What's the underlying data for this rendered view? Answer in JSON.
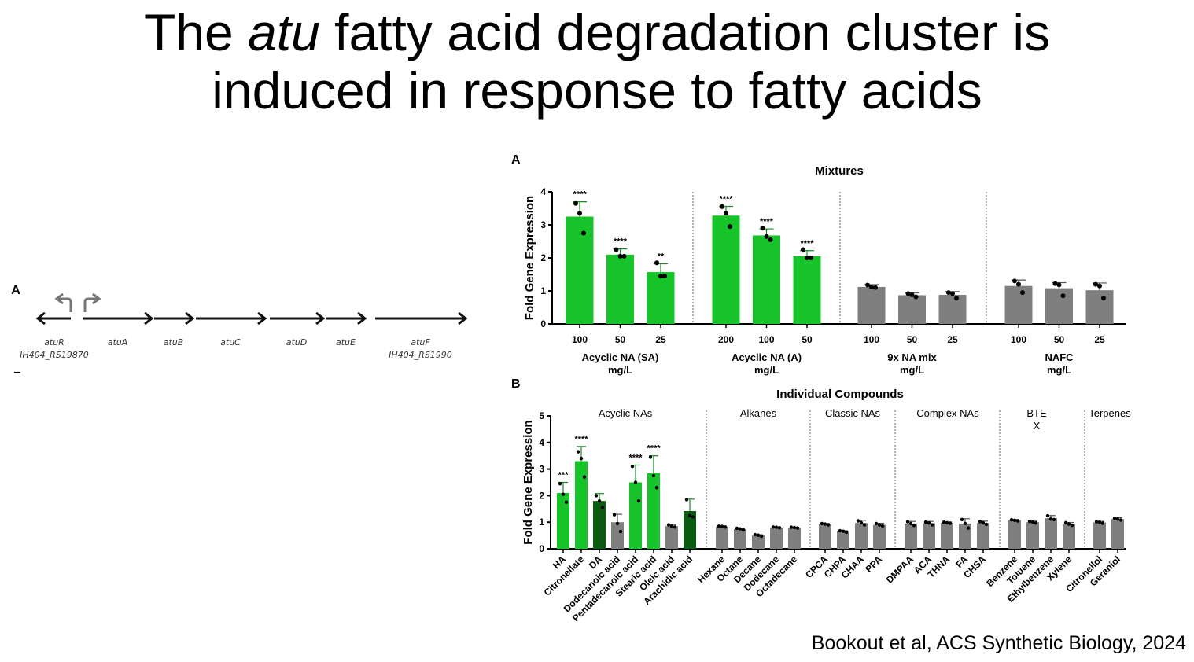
{
  "slide": {
    "title_pre": "The ",
    "title_italic": "atu",
    "title_post": " fatty acid degradation cluster is",
    "title_line2": "induced in response to fatty acids",
    "citation": "Bookout et al, ACS Synthetic Biology, 2024"
  },
  "operon": {
    "panel_label": "A",
    "dash": "–",
    "genes": [
      {
        "name": "atuR",
        "locus": "IH404_RS19870",
        "direction": "left"
      },
      {
        "name": "atuA",
        "locus": "",
        "direction": "right"
      },
      {
        "name": "atuB",
        "locus": "",
        "direction": "right"
      },
      {
        "name": "atuC",
        "locus": "",
        "direction": "right"
      },
      {
        "name": "atuD",
        "locus": "",
        "direction": "right"
      },
      {
        "name": "atuE",
        "locus": "",
        "direction": "right"
      },
      {
        "name": "atuF",
        "locus": "IH404_RS1990",
        "direction": "right"
      }
    ]
  },
  "colors": {
    "green": "#16c42a",
    "dark_green": "#0b5a12",
    "gray": "#7f7f7f",
    "errorbar_green": "#1a8a26"
  },
  "chart_data": [
    {
      "type": "bar",
      "panel_label": "A",
      "title": "Mixtures",
      "ylabel": "Fold Gene Expression",
      "ylim": [
        0,
        4
      ],
      "yticks": [
        0,
        1,
        2,
        3,
        4
      ],
      "groups": [
        {
          "name": "Acyclic NA (SA)",
          "unit": "mg/L",
          "categories": [
            "100",
            "50",
            "25"
          ],
          "values": [
            3.25,
            2.1,
            1.57
          ],
          "errors": [
            0.45,
            0.17,
            0.25
          ],
          "significance": [
            "****",
            "****",
            "**"
          ],
          "colors": [
            "green",
            "green",
            "green"
          ],
          "points": [
            [
              3.65,
              3.35,
              2.75
            ],
            [
              2.25,
              2.05,
              2.05
            ],
            [
              1.85,
              1.45,
              1.45
            ]
          ]
        },
        {
          "name": "Acyclic NA (A)",
          "unit": "mg/L",
          "categories": [
            "200",
            "100",
            "50"
          ],
          "values": [
            3.28,
            2.68,
            2.05
          ],
          "errors": [
            0.28,
            0.2,
            0.17
          ],
          "significance": [
            "****",
            "****",
            "****"
          ],
          "colors": [
            "green",
            "green",
            "green"
          ],
          "points": [
            [
              3.55,
              3.35,
              2.95
            ],
            [
              2.9,
              2.65,
              2.55
            ],
            [
              2.25,
              2.0,
              2.0
            ]
          ]
        },
        {
          "name": "9x NA mix",
          "unit": "mg/L",
          "categories": [
            "100",
            "50",
            "25"
          ],
          "values": [
            1.12,
            0.87,
            0.88
          ],
          "errors": [
            0.07,
            0.07,
            0.1
          ],
          "significance": [
            "",
            "",
            ""
          ],
          "colors": [
            "gray",
            "gray",
            "gray"
          ],
          "points": [
            [
              1.18,
              1.12,
              1.1
            ],
            [
              0.92,
              0.88,
              0.82
            ],
            [
              0.95,
              0.92,
              0.78
            ]
          ]
        },
        {
          "name": "NAFC",
          "unit": "mg/L",
          "categories": [
            "100",
            "50",
            "25"
          ],
          "values": [
            1.15,
            1.08,
            1.02
          ],
          "errors": [
            0.18,
            0.17,
            0.22
          ],
          "significance": [
            "",
            "",
            ""
          ],
          "colors": [
            "gray",
            "gray",
            "gray"
          ],
          "points": [
            [
              1.3,
              1.2,
              0.95
            ],
            [
              1.22,
              1.18,
              0.85
            ],
            [
              1.2,
              1.15,
              0.78
            ]
          ]
        }
      ]
    },
    {
      "type": "bar",
      "panel_label": "B",
      "title": "Individual Compounds",
      "ylabel": "Fold Gene Expression",
      "ylim": [
        0,
        5
      ],
      "yticks": [
        0,
        1,
        2,
        3,
        4,
        5
      ],
      "groups": [
        {
          "name": "Acyclic NAs",
          "categories": [
            "HA",
            "Citronellate",
            "DA",
            "Dodecanoic acid",
            "Pentadecanoic acid",
            "Stearic acid",
            "Oleic acid",
            "Arachidic acid"
          ],
          "values": [
            2.1,
            3.3,
            1.8,
            1.0,
            2.5,
            2.85,
            0.85,
            1.42
          ],
          "errors": [
            0.4,
            0.55,
            0.28,
            0.3,
            0.65,
            0.65,
            0.06,
            0.45
          ],
          "significance": [
            "***",
            "****",
            "",
            "",
            "****",
            "****",
            "",
            ""
          ],
          "colors": [
            "green",
            "green",
            "dark_green",
            "gray",
            "green",
            "green",
            "gray",
            "dark_green"
          ],
          "points": [
            [
              2.45,
              2.05,
              1.75
            ],
            [
              3.65,
              3.4,
              2.7
            ],
            [
              2.0,
              1.8,
              1.55
            ],
            [
              1.28,
              0.95,
              0.65
            ],
            [
              3.1,
              2.5,
              1.8
            ],
            [
              3.45,
              2.75,
              2.3
            ],
            [
              0.9,
              0.85,
              0.82
            ],
            [
              1.85,
              1.25,
              1.2
            ]
          ]
        },
        {
          "name": "Alkanes",
          "categories": [
            "Hexane",
            "Octane",
            "Decane",
            "Dodecane",
            "Octadecane"
          ],
          "values": [
            0.83,
            0.74,
            0.5,
            0.8,
            0.79
          ],
          "errors": [
            0.02,
            0.03,
            0.03,
            0.02,
            0.02
          ],
          "significance": [
            "",
            "",
            "",
            "",
            ""
          ],
          "colors": [
            "gray",
            "gray",
            "gray",
            "gray",
            "gray"
          ],
          "points": [
            [
              0.85,
              0.84,
              0.82
            ],
            [
              0.77,
              0.75,
              0.71
            ],
            [
              0.53,
              0.51,
              0.47
            ],
            [
              0.82,
              0.81,
              0.79
            ],
            [
              0.81,
              0.8,
              0.78
            ]
          ]
        },
        {
          "name": "Classic NAs",
          "categories": [
            "CPCA",
            "CHPA",
            "CHAA",
            "PPA"
          ],
          "values": [
            0.92,
            0.65,
            0.97,
            0.9
          ],
          "errors": [
            0.03,
            0.03,
            0.1,
            0.06
          ],
          "significance": [
            "",
            "",
            "",
            ""
          ],
          "colors": [
            "gray",
            "gray",
            "gray",
            "gray"
          ],
          "points": [
            [
              0.95,
              0.93,
              0.9
            ],
            [
              0.68,
              0.66,
              0.62
            ],
            [
              1.05,
              0.98,
              0.9
            ],
            [
              0.95,
              0.9,
              0.86
            ]
          ]
        },
        {
          "name": "Complex NAs",
          "categories": [
            "DMPAA",
            "ACA",
            "THNA",
            "FA",
            "CHSA"
          ],
          "values": [
            0.95,
            0.96,
            0.98,
            0.95,
            0.97
          ],
          "errors": [
            0.08,
            0.07,
            0.03,
            0.18,
            0.07
          ],
          "significance": [
            "",
            "",
            "",
            "",
            ""
          ],
          "colors": [
            "gray",
            "gray",
            "gray",
            "gray",
            "gray"
          ],
          "points": [
            [
              1.02,
              0.95,
              0.88
            ],
            [
              1.0,
              0.97,
              0.9
            ],
            [
              1.0,
              0.98,
              0.96
            ],
            [
              1.1,
              0.95,
              0.78
            ],
            [
              1.02,
              0.97,
              0.92
            ]
          ]
        },
        {
          "name": "BTE\nX",
          "categories": [
            "Benzene",
            "Toluene",
            "Ethylbenzene",
            "Xylene"
          ],
          "values": [
            1.07,
            1.0,
            1.15,
            0.93
          ],
          "errors": [
            0.03,
            0.04,
            0.1,
            0.06
          ],
          "significance": [
            "",
            "",
            "",
            ""
          ],
          "colors": [
            "gray",
            "gray",
            "gray",
            "gray"
          ],
          "points": [
            [
              1.09,
              1.07,
              1.05
            ],
            [
              1.03,
              1.0,
              0.97
            ],
            [
              1.24,
              1.12,
              1.1
            ],
            [
              0.98,
              0.93,
              0.88
            ]
          ]
        },
        {
          "name": "Terpenes",
          "categories": [
            "Citronellol",
            "Geraniol"
          ],
          "values": [
            0.99,
            1.12
          ],
          "errors": [
            0.04,
            0.05
          ],
          "significance": [
            "",
            ""
          ],
          "colors": [
            "gray",
            "gray"
          ],
          "points": [
            [
              1.02,
              1.0,
              0.96
            ],
            [
              1.15,
              1.12,
              1.08
            ]
          ]
        }
      ]
    }
  ]
}
